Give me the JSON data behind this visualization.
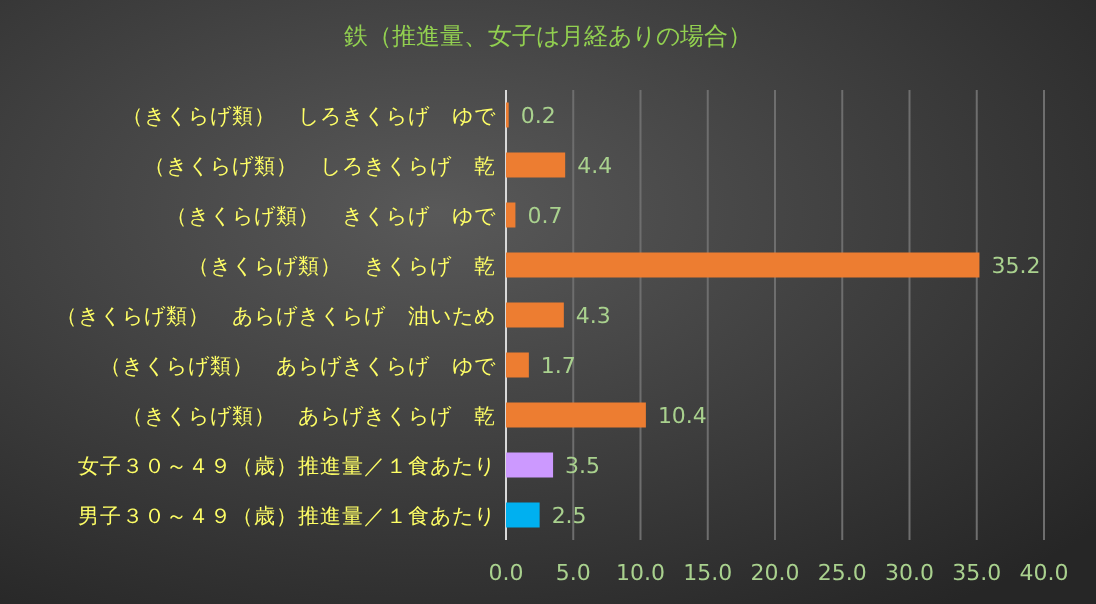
{
  "chart_data": {
    "type": "bar",
    "orientation": "horizontal",
    "title": "鉄（推進量、女子は月経ありの場合）",
    "categories": [
      "（きくらげ類）　しろきくらげ　ゆで",
      "（きくらげ類）　しろきくらげ　乾",
      "（きくらげ類）　きくらげ　ゆで",
      "（きくらげ類）　きくらげ　乾",
      "（きくらげ類）　あらげきくらげ　油いため",
      "（きくらげ類）　あらげきくらげ　ゆで",
      "（きくらげ類）　あらげきくらげ　乾",
      "女子３０～４９（歳）推進量／１食あたり",
      "男子３０～４９（歳）推進量／１食あたり"
    ],
    "values": [
      0.2,
      4.4,
      0.7,
      35.2,
      4.3,
      1.7,
      10.4,
      3.5,
      2.5
    ],
    "colors": [
      "#ed7d31",
      "#ed7d31",
      "#ed7d31",
      "#ed7d31",
      "#ed7d31",
      "#ed7d31",
      "#ed7d31",
      "#cc99ff",
      "#00b0f0"
    ],
    "xlim": [
      0,
      40
    ],
    "xticks": [
      {
        "value": 0,
        "label": "0.0"
      },
      {
        "value": 5,
        "label": "5.0"
      },
      {
        "value": 10,
        "label": "10.0"
      },
      {
        "value": 15,
        "label": "15.0"
      },
      {
        "value": 20,
        "label": "20.0"
      },
      {
        "value": 25,
        "label": "25.0"
      },
      {
        "value": 30,
        "label": "30.0"
      },
      {
        "value": 35,
        "label": "35.0"
      },
      {
        "value": 40,
        "label": "40.0"
      }
    ],
    "grid": "x",
    "data_labels": true
  }
}
